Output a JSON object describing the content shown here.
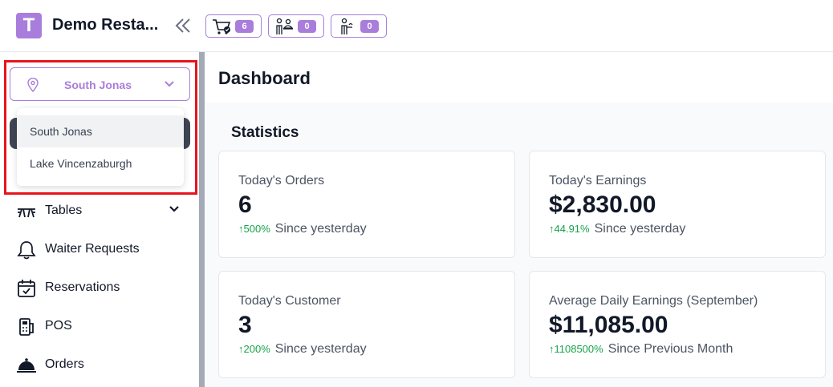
{
  "header": {
    "logo_letter": "T",
    "title": "Demo Resta...",
    "badges": [
      {
        "icon": "cart-check-icon",
        "count": "6"
      },
      {
        "icon": "waiter-request-icon",
        "count": "0"
      },
      {
        "icon": "waiter-icon",
        "count": "0"
      }
    ]
  },
  "sidebar": {
    "location": {
      "selected": "South Jonas",
      "options": [
        "South Jonas",
        "Lake Vincenzaburgh"
      ]
    },
    "items": [
      {
        "label": "Tables",
        "icon": "table-icon"
      },
      {
        "label": "Waiter Requests",
        "icon": "bell-icon"
      },
      {
        "label": "Reservations",
        "icon": "calendar-icon"
      },
      {
        "label": "POS",
        "icon": "pos-icon"
      },
      {
        "label": "Orders",
        "icon": "cloche-icon"
      }
    ]
  },
  "main": {
    "page_title": "Dashboard",
    "section_title": "Statistics",
    "cards": [
      {
        "label": "Today's Orders",
        "value": "6",
        "arrow": "↑",
        "change": "500%",
        "note": "Since yesterday"
      },
      {
        "label": "Today's Earnings",
        "value": "$2,830.00",
        "arrow": "↑",
        "change": "44.91%",
        "note": "Since yesterday"
      },
      {
        "label": "Today's Customer",
        "value": "3",
        "arrow": "↑",
        "change": "200%",
        "note": "Since yesterday"
      },
      {
        "label": "Average Daily Earnings (September)",
        "value": "$11,085.00",
        "arrow": "↑",
        "change": "1108500%",
        "note": "Since Previous Month"
      }
    ]
  },
  "colors": {
    "accent": "#a97ddb",
    "positive": "#16a34a",
    "highlight": "#e8141c"
  }
}
